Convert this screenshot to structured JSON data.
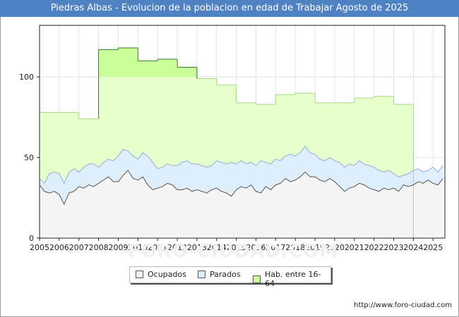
{
  "chart_data": {
    "type": "area",
    "title": "Piedras Albas - Evolucion de la poblacion en edad de Trabajar Agosto de 2025",
    "xlabel": "",
    "ylabel": "",
    "xlim": [
      2005,
      2025.6
    ],
    "ylim": [
      0,
      132
    ],
    "x_ticks": [
      "2005",
      "2006",
      "2007",
      "2008",
      "2009",
      "2010",
      "2011",
      "2012",
      "2013",
      "2014",
      "2015",
      "2016",
      "2017",
      "2018",
      "2019",
      "2020",
      "2021",
      "2022",
      "2023",
      "2024",
      "2025"
    ],
    "y_ticks": [
      0,
      50,
      100
    ],
    "grid": true,
    "legend_position": "bottom",
    "colors": {
      "hab": "#ccff99",
      "hab_line": "#2e7d32",
      "parados": "#ddeeff",
      "parados_line": "#8aaee0",
      "ocupados": "#f5f5f5",
      "ocupados_line": "#555555"
    },
    "series": [
      {
        "name": "Hab. entre 16-64",
        "key": "hab",
        "steps": [
          {
            "start": 2005.0,
            "end": 2007.0,
            "value": 78
          },
          {
            "start": 2007.0,
            "end": 2008.0,
            "value": 74
          },
          {
            "start": 2008.0,
            "end": 2009.0,
            "value": 117
          },
          {
            "start": 2009.0,
            "end": 2010.0,
            "value": 118
          },
          {
            "start": 2010.0,
            "end": 2011.0,
            "value": 110
          },
          {
            "start": 2011.0,
            "end": 2012.0,
            "value": 111
          },
          {
            "start": 2012.0,
            "end": 2013.0,
            "value": 106
          },
          {
            "start": 2013.0,
            "end": 2014.0,
            "value": 99
          },
          {
            "start": 2014.0,
            "end": 2015.0,
            "value": 95
          },
          {
            "start": 2015.0,
            "end": 2016.0,
            "value": 84
          },
          {
            "start": 2016.0,
            "end": 2017.0,
            "value": 83
          },
          {
            "start": 2017.0,
            "end": 2018.0,
            "value": 89
          },
          {
            "start": 2018.0,
            "end": 2019.0,
            "value": 90
          },
          {
            "start": 2019.0,
            "end": 2021.0,
            "value": 84
          },
          {
            "start": 2021.0,
            "end": 2022.0,
            "value": 87
          },
          {
            "start": 2022.0,
            "end": 2023.0,
            "value": 88
          },
          {
            "start": 2023.0,
            "end": 2024.0,
            "value": 83
          }
        ]
      },
      {
        "name": "Parados",
        "key": "parados",
        "x": [
          2005.0,
          2005.25,
          2005.5,
          2005.75,
          2006.0,
          2006.25,
          2006.5,
          2006.75,
          2007.0,
          2007.25,
          2007.5,
          2007.75,
          2008.0,
          2008.25,
          2008.5,
          2008.75,
          2009.0,
          2009.25,
          2009.5,
          2009.75,
          2010.0,
          2010.25,
          2010.5,
          2010.75,
          2011.0,
          2011.25,
          2011.5,
          2011.75,
          2012.0,
          2012.25,
          2012.5,
          2012.75,
          2013.0,
          2013.25,
          2013.5,
          2013.75,
          2014.0,
          2014.25,
          2014.5,
          2014.75,
          2015.0,
          2015.25,
          2015.5,
          2015.75,
          2016.0,
          2016.25,
          2016.5,
          2016.75,
          2017.0,
          2017.25,
          2017.5,
          2017.75,
          2018.0,
          2018.25,
          2018.5,
          2018.75,
          2019.0,
          2019.25,
          2019.5,
          2019.75,
          2020.0,
          2020.25,
          2020.5,
          2020.75,
          2021.0,
          2021.25,
          2021.5,
          2021.75,
          2022.0,
          2022.25,
          2022.5,
          2022.75,
          2023.0,
          2023.25,
          2023.5,
          2023.75,
          2024.0,
          2024.25,
          2024.5,
          2024.75,
          2025.0,
          2025.25,
          2025.5
        ],
        "values": [
          37,
          34,
          40,
          41,
          40,
          34,
          41,
          43,
          41,
          44,
          46,
          46,
          44,
          47,
          49,
          48,
          51,
          55,
          54,
          51,
          49,
          53,
          51,
          47,
          43,
          44,
          46,
          45,
          45,
          47,
          48,
          46,
          46,
          45,
          44,
          45,
          48,
          47,
          46,
          47,
          46,
          48,
          46,
          47,
          45,
          48,
          47,
          46,
          49,
          48,
          51,
          52,
          51,
          53,
          57,
          53,
          52,
          49,
          48,
          50,
          48,
          47,
          44,
          46,
          45,
          48,
          46,
          45,
          44,
          42,
          41,
          42,
          40,
          38,
          39,
          40,
          42,
          43,
          41,
          42,
          44,
          41,
          45
        ]
      },
      {
        "name": "Ocupados",
        "key": "ocupados",
        "x": [
          2005.0,
          2005.25,
          2005.5,
          2005.75,
          2006.0,
          2006.25,
          2006.5,
          2006.75,
          2007.0,
          2007.25,
          2007.5,
          2007.75,
          2008.0,
          2008.25,
          2008.5,
          2008.75,
          2009.0,
          2009.25,
          2009.5,
          2009.75,
          2010.0,
          2010.25,
          2010.5,
          2010.75,
          2011.0,
          2011.25,
          2011.5,
          2011.75,
          2012.0,
          2012.25,
          2012.5,
          2012.75,
          2013.0,
          2013.25,
          2013.5,
          2013.75,
          2014.0,
          2014.25,
          2014.5,
          2014.75,
          2015.0,
          2015.25,
          2015.5,
          2015.75,
          2016.0,
          2016.25,
          2016.5,
          2016.75,
          2017.0,
          2017.25,
          2017.5,
          2017.75,
          2018.0,
          2018.25,
          2018.5,
          2018.75,
          2019.0,
          2019.25,
          2019.5,
          2019.75,
          2020.0,
          2020.25,
          2020.5,
          2020.75,
          2021.0,
          2021.25,
          2021.5,
          2021.75,
          2022.0,
          2022.25,
          2022.5,
          2022.75,
          2023.0,
          2023.25,
          2023.5,
          2023.75,
          2024.0,
          2024.25,
          2024.5,
          2024.75,
          2025.0,
          2025.25,
          2025.5
        ],
        "values": [
          33,
          29,
          28,
          29,
          27,
          21,
          28,
          29,
          32,
          31,
          33,
          32,
          34,
          36,
          38,
          35,
          35,
          39,
          42,
          37,
          36,
          38,
          33,
          30,
          31,
          32,
          34,
          33,
          30,
          30,
          31,
          29,
          30,
          29,
          28,
          30,
          31,
          29,
          28,
          26,
          30,
          32,
          31,
          33,
          29,
          28,
          32,
          30,
          33,
          34,
          37,
          35,
          36,
          38,
          41,
          38,
          38,
          36,
          35,
          37,
          35,
          32,
          29,
          31,
          32,
          34,
          33,
          31,
          30,
          29,
          31,
          30,
          31,
          29,
          33,
          32,
          33,
          35,
          34,
          36,
          34,
          33,
          37
        ]
      }
    ]
  },
  "footer": {
    "url": "http://www.foro-ciudad.com"
  }
}
